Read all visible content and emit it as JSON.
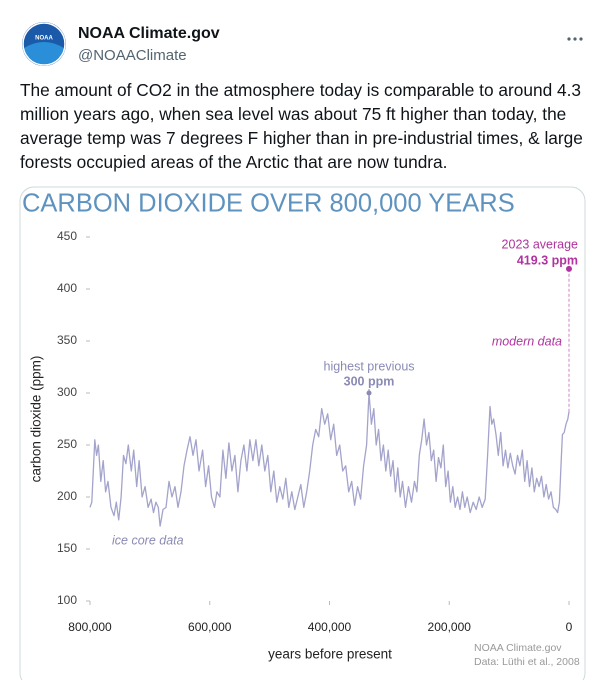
{
  "post": {
    "logo_text": "NOAA",
    "name": "NOAA Climate.gov",
    "handle": "@NOAAClimate",
    "text": "The amount of CO2 in the atmosphere today is comparable to around 4.3 million years ago, when sea level was about 75 ft higher than today, the average temp was 7 degrees F higher than in pre-industrial times, & large forests occupied areas of the Arctic that are now tundra."
  },
  "chart_data": {
    "type": "line",
    "title": "CARBON DIOXIDE OVER 800,000 YEARS",
    "xlabel": "years before present",
    "ylabel": "carbon dioxide (ppm)",
    "color": "#a3a3cc",
    "x": [
      800000,
      797000,
      792000,
      789000,
      786000,
      782000,
      778000,
      774000,
      770000,
      765000,
      760000,
      756000,
      752000,
      748000,
      744000,
      740000,
      736000,
      731000,
      727000,
      722000,
      718000,
      713000,
      708000,
      703000,
      698000,
      694000,
      690000,
      686000,
      683000,
      678000,
      673000,
      668000,
      663000,
      658000,
      653000,
      648000,
      643000,
      638000,
      633000,
      628000,
      623000,
      618000,
      612000,
      607000,
      602000,
      597000,
      592000,
      588000,
      583000,
      578000,
      573000,
      568000,
      563000,
      558000,
      553000,
      548000,
      543000,
      538000,
      533000,
      528000,
      523000,
      518000,
      513000,
      508000,
      503000,
      498000,
      493000,
      488000,
      483000,
      478000,
      473000,
      468000,
      463000,
      458000,
      453000,
      448000,
      443000,
      438000,
      433000,
      428000,
      423000,
      418000,
      413000,
      408000,
      403000,
      398000,
      393000,
      388000,
      383000,
      378000,
      373000,
      368000,
      363000,
      358000,
      353000,
      348000,
      343000,
      338000,
      334000,
      330000,
      326000,
      322000,
      318000,
      314000,
      310000,
      306000,
      302000,
      298000,
      294000,
      290000,
      286000,
      282000,
      278000,
      273000,
      268000,
      263000,
      258000,
      254000,
      250000,
      246000,
      242000,
      238000,
      234000,
      230000,
      226000,
      222000,
      218000,
      214000,
      210000,
      206000,
      202000,
      198000,
      194000,
      190000,
      186000,
      182000,
      178000,
      174000,
      170000,
      165000,
      160000,
      155000,
      150000,
      145000,
      140000,
      136000,
      132000,
      129000,
      126000,
      122000,
      118000,
      114000,
      110000,
      106000,
      102000,
      98000,
      94000,
      90000,
      86000,
      82000,
      78000,
      74000,
      70000,
      66000,
      62000,
      58000,
      54000,
      50000,
      46000,
      42000,
      38000,
      34000,
      30000,
      26000,
      22000,
      19000,
      16000,
      13000,
      11000,
      8000,
      5000,
      2000,
      0
    ],
    "values": [
      190,
      195,
      255,
      240,
      250,
      215,
      235,
      205,
      215,
      190,
      182,
      195,
      178,
      200,
      240,
      232,
      250,
      225,
      245,
      210,
      235,
      200,
      210,
      190,
      198,
      185,
      195,
      190,
      172,
      188,
      190,
      215,
      200,
      210,
      190,
      205,
      230,
      245,
      258,
      240,
      255,
      225,
      245,
      210,
      230,
      200,
      190,
      205,
      200,
      245,
      218,
      252,
      225,
      240,
      205,
      235,
      250,
      225,
      255,
      235,
      255,
      230,
      250,
      225,
      240,
      205,
      225,
      195,
      210,
      198,
      218,
      190,
      205,
      188,
      200,
      212,
      190,
      205,
      225,
      250,
      265,
      258,
      285,
      270,
      280,
      255,
      270,
      240,
      250,
      225,
      230,
      205,
      215,
      192,
      210,
      198,
      230,
      250,
      300,
      270,
      285,
      250,
      265,
      235,
      250,
      225,
      245,
      220,
      235,
      205,
      228,
      200,
      215,
      190,
      210,
      195,
      215,
      205,
      240,
      255,
      275,
      250,
      262,
      235,
      245,
      215,
      238,
      228,
      250,
      210,
      225,
      195,
      210,
      190,
      200,
      188,
      205,
      190,
      200,
      185,
      195,
      188,
      200,
      190,
      198,
      240,
      287,
      270,
      275,
      260,
      240,
      262,
      230,
      245,
      228,
      242,
      230,
      222,
      240,
      230,
      245,
      215,
      235,
      210,
      228,
      205,
      218,
      210,
      220,
      200,
      212,
      198,
      205,
      190,
      188,
      185,
      195,
      235,
      260,
      262,
      270,
      275,
      282
    ],
    "xlim": [
      800000,
      0
    ],
    "ylim": [
      100,
      450
    ],
    "xticks": [
      {
        "value": 800000,
        "label": "800,000"
      },
      {
        "value": 600000,
        "label": "600,000"
      },
      {
        "value": 400000,
        "label": "400,000"
      },
      {
        "value": 200000,
        "label": "200,000"
      },
      0
    ],
    "yticks": [
      100,
      150,
      200,
      250,
      300,
      350,
      400,
      450
    ],
    "annotations": [
      {
        "text": "highest previous",
        "value_label": "300 ppm",
        "x": 334000,
        "value": 300,
        "color": "#8a8ab5"
      },
      {
        "text": "2023 average",
        "value_label": "419.3 ppm",
        "x": 0,
        "value": 419.3,
        "color": "#b0339f"
      }
    ],
    "series_labels": {
      "ice_core": "ice core data",
      "modern": "modern data"
    },
    "source": [
      "NOAA Climate.gov",
      "Data: Lüthi et al., 2008"
    ]
  }
}
